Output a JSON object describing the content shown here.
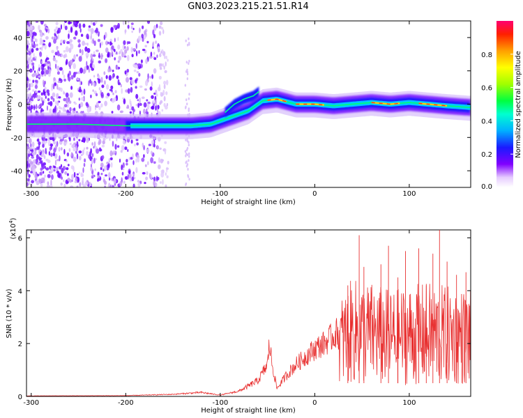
{
  "title": "GN03.2023.215.21.51.R14",
  "chart_data": [
    {
      "type": "heatmap",
      "xlabel": "Height of straight line (km)",
      "ylabel": "Frequency (Hz)",
      "xlim": [
        -305,
        165
      ],
      "ylim": [
        -50,
        50
      ],
      "xticks": [
        -300,
        -200,
        -100,
        0,
        100
      ],
      "yticks": [
        -40,
        -20,
        0,
        20,
        40
      ],
      "grid": false,
      "colorbar": {
        "label": "Normalized spectral amplitude",
        "range": [
          0,
          1
        ],
        "ticks": [
          "0.0",
          "0.2",
          "0.4",
          "0.6",
          "0.8"
        ]
      },
      "ridge": {
        "x": [
          -305,
          -250,
          -200,
          -160,
          -130,
          -110,
          -90,
          -70,
          -55,
          -40,
          -20,
          0,
          20,
          40,
          60,
          80,
          100,
          120,
          140,
          165
        ],
        "y": [
          -12,
          -12,
          -13,
          -13,
          -13,
          -12,
          -8,
          -4,
          2,
          3,
          0,
          0,
          -1,
          0,
          1,
          0,
          1,
          0,
          -1,
          -2
        ]
      },
      "side_branch": {
        "x": [
          -95,
          -85,
          -75,
          -65,
          -58
        ],
        "y": [
          -5,
          0,
          3,
          5,
          8
        ]
      }
    },
    {
      "type": "line",
      "xlabel": "Height of straight line (km)",
      "ylabel": "SNR (10 * v/v)",
      "y_multiplier": "(x10",
      "y_multiplier_exp": "4",
      "y_multiplier_close": ")",
      "xlim": [
        -305,
        165
      ],
      "ylim": [
        0,
        6.3
      ],
      "xticks": [
        -300,
        -200,
        -100,
        0,
        100
      ],
      "yticks": [
        0,
        2,
        4,
        6
      ],
      "grid": false,
      "color": "#e83030",
      "envelope": {
        "x": [
          -305,
          -200,
          -150,
          -120,
          -100,
          -80,
          -60,
          -50,
          -48,
          -45,
          -40,
          -30,
          -20,
          -10,
          0,
          10,
          20,
          30,
          40,
          48,
          60,
          80,
          100,
          120,
          140,
          165
        ],
        "y": [
          0.02,
          0.03,
          0.08,
          0.15,
          0.05,
          0.2,
          0.6,
          1.2,
          2.0,
          1.2,
          0.3,
          0.8,
          1.2,
          1.5,
          1.8,
          2.0,
          2.3,
          2.6,
          3.0,
          2.9,
          2.9,
          2.7,
          2.8,
          2.9,
          2.8,
          2.7
        ]
      },
      "peaks": {
        "x": [
          35,
          47,
          52,
          70,
          78,
          88,
          96,
          110,
          118,
          125,
          132,
          140,
          150,
          160
        ],
        "y": [
          4.2,
          6.1,
          4.9,
          5.0,
          5.7,
          4.5,
          5.5,
          5.6,
          4.2,
          5.4,
          6.3,
          5.1,
          4.6,
          4.7
        ]
      }
    }
  ]
}
